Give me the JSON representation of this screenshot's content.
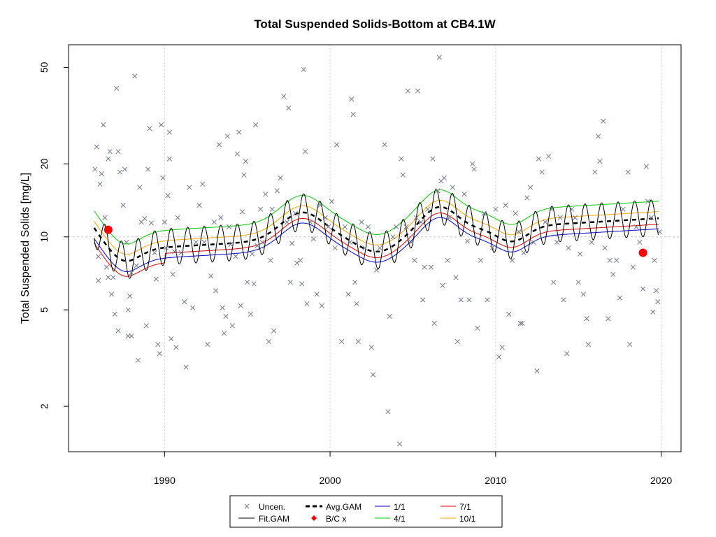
{
  "chart_data": {
    "type": "scatter",
    "title": "Total Suspended Solids-Bottom at CB4.1W",
    "xlabel": "",
    "ylabel": "Total Suspended Solids [mg/L]",
    "y_scale": "log",
    "xlim": [
      1984.2,
      2021.2
    ],
    "ylim": [
      1.3,
      62
    ],
    "x_ticks": [
      1990,
      2000,
      2010,
      2020
    ],
    "y_ticks": [
      2,
      5,
      10,
      20,
      50
    ],
    "reference_line_y": 10,
    "grid": "vertical dotted at x ticks",
    "legend_position": "bottom",
    "colors": {
      "uncensored": "#6e7a8a",
      "fit_gam": "#000000",
      "avg_gam": "#000000",
      "bc": "#ff0000",
      "ratio_1_1": "#0000cd",
      "ratio_4_1": "#00cc00",
      "ratio_7_1": "#e00000",
      "ratio_10_1": "#ffa500"
    },
    "uncensored_points": [
      [
        1985.8,
        19.0
      ],
      [
        1985.9,
        23.5
      ],
      [
        1986.0,
        6.6
      ],
      [
        1986.0,
        8.3
      ],
      [
        1986.1,
        16.5
      ],
      [
        1986.2,
        18.2
      ],
      [
        1986.3,
        29.0
      ],
      [
        1986.4,
        12.0
      ],
      [
        1986.5,
        7.5
      ],
      [
        1986.6,
        6.8
      ],
      [
        1986.6,
        21.0
      ],
      [
        1986.7,
        22.5
      ],
      [
        1986.8,
        5.8
      ],
      [
        1986.9,
        6.8
      ],
      [
        1987.0,
        4.8
      ],
      [
        1987.1,
        41.0
      ],
      [
        1987.2,
        22.5
      ],
      [
        1987.2,
        4.1
      ],
      [
        1987.3,
        18.5
      ],
      [
        1987.5,
        13.5
      ],
      [
        1987.6,
        19.0
      ],
      [
        1987.7,
        9.5
      ],
      [
        1987.8,
        3.9
      ],
      [
        1987.8,
        5.0
      ],
      [
        1987.9,
        5.7
      ],
      [
        1988.0,
        3.9
      ],
      [
        1988.0,
        7.1
      ],
      [
        1988.2,
        46.0
      ],
      [
        1988.3,
        7.6
      ],
      [
        1988.4,
        3.1
      ],
      [
        1988.5,
        16.0
      ],
      [
        1988.6,
        11.5
      ],
      [
        1988.8,
        11.9
      ],
      [
        1988.9,
        4.3
      ],
      [
        1989.0,
        19.0
      ],
      [
        1989.1,
        28.0
      ],
      [
        1989.2,
        11.4
      ],
      [
        1989.4,
        8.6
      ],
      [
        1989.5,
        6.7
      ],
      [
        1989.6,
        3.6
      ],
      [
        1989.7,
        3.3
      ],
      [
        1989.8,
        29.0
      ],
      [
        1989.9,
        17.5
      ],
      [
        1990.0,
        11.5
      ],
      [
        1990.1,
        9.0
      ],
      [
        1990.2,
        14.8
      ],
      [
        1990.3,
        21.0
      ],
      [
        1990.3,
        27.0
      ],
      [
        1990.4,
        3.8
      ],
      [
        1990.5,
        7.0
      ],
      [
        1990.6,
        8.7
      ],
      [
        1990.7,
        3.5
      ],
      [
        1990.8,
        12.0
      ],
      [
        1991.0,
        8.6
      ],
      [
        1991.2,
        5.4
      ],
      [
        1991.3,
        2.9
      ],
      [
        1991.5,
        16.0
      ],
      [
        1991.7,
        5.1
      ],
      [
        1991.9,
        9.5
      ],
      [
        1992.1,
        13.5
      ],
      [
        1992.3,
        16.5
      ],
      [
        1992.4,
        9.5
      ],
      [
        1992.6,
        3.6
      ],
      [
        1992.8,
        6.9
      ],
      [
        1993.0,
        11.5
      ],
      [
        1993.1,
        6.0
      ],
      [
        1993.3,
        24.0
      ],
      [
        1993.4,
        12.0
      ],
      [
        1993.5,
        5.1
      ],
      [
        1993.6,
        4.0
      ],
      [
        1993.7,
        4.7
      ],
      [
        1993.8,
        26.0
      ],
      [
        1993.9,
        11.0
      ],
      [
        1994.0,
        9.3
      ],
      [
        1994.1,
        4.3
      ],
      [
        1994.3,
        8.3
      ],
      [
        1994.4,
        22.0
      ],
      [
        1994.5,
        27.0
      ],
      [
        1994.6,
        5.2
      ],
      [
        1994.7,
        12.7
      ],
      [
        1994.8,
        18.0
      ],
      [
        1994.9,
        20.5
      ],
      [
        1995.0,
        6.5
      ],
      [
        1995.2,
        4.8
      ],
      [
        1995.3,
        8.5
      ],
      [
        1995.4,
        6.4
      ],
      [
        1995.5,
        29.0
      ],
      [
        1995.6,
        9.2
      ],
      [
        1995.8,
        13.0
      ],
      [
        1995.9,
        9.5
      ],
      [
        1996.1,
        15.0
      ],
      [
        1996.3,
        3.7
      ],
      [
        1996.4,
        8.0
      ],
      [
        1996.5,
        13.0
      ],
      [
        1996.6,
        4.1
      ],
      [
        1996.8,
        15.5
      ],
      [
        1997.0,
        17.5
      ],
      [
        1997.2,
        38.0
      ],
      [
        1997.4,
        11.5
      ],
      [
        1997.5,
        34.0
      ],
      [
        1997.6,
        6.5
      ],
      [
        1997.7,
        9.4
      ],
      [
        1997.9,
        12.5
      ],
      [
        1998.0,
        7.8
      ],
      [
        1998.2,
        8.0
      ],
      [
        1998.3,
        6.4
      ],
      [
        1998.4,
        49.0
      ],
      [
        1998.5,
        22.5
      ],
      [
        1998.6,
        5.3
      ],
      [
        1998.8,
        11.5
      ],
      [
        1999.0,
        9.8
      ],
      [
        1999.2,
        5.8
      ],
      [
        1999.4,
        13.5
      ],
      [
        1999.5,
        5.2
      ],
      [
        1999.7,
        12.0
      ],
      [
        1999.9,
        11.0
      ],
      [
        2000.1,
        14.0
      ],
      [
        2000.3,
        9.0
      ],
      [
        2000.4,
        24.0
      ],
      [
        2000.7,
        3.7
      ],
      [
        2000.9,
        11.0
      ],
      [
        2001.1,
        5.8
      ],
      [
        2001.2,
        9.5
      ],
      [
        2001.3,
        37.0
      ],
      [
        2001.4,
        32.0
      ],
      [
        2001.5,
        6.5
      ],
      [
        2001.6,
        5.3
      ],
      [
        2001.7,
        3.7
      ],
      [
        2001.9,
        11.5
      ],
      [
        2002.1,
        9.0
      ],
      [
        2002.3,
        11.0
      ],
      [
        2002.5,
        3.5
      ],
      [
        2002.6,
        2.7
      ],
      [
        2002.8,
        7.3
      ],
      [
        2003.0,
        9.0
      ],
      [
        2003.3,
        24.0
      ],
      [
        2003.5,
        1.9
      ],
      [
        2003.6,
        4.7
      ],
      [
        2003.8,
        10.0
      ],
      [
        2004.0,
        11.0
      ],
      [
        2004.2,
        1.4
      ],
      [
        2004.3,
        21.0
      ],
      [
        2004.4,
        18.0
      ],
      [
        2004.6,
        11.0
      ],
      [
        2004.7,
        40.0
      ],
      [
        2004.9,
        9.5
      ],
      [
        2005.1,
        8.0
      ],
      [
        2005.2,
        12.0
      ],
      [
        2005.3,
        40.0
      ],
      [
        2005.5,
        11.5
      ],
      [
        2005.6,
        5.5
      ],
      [
        2005.7,
        7.5
      ],
      [
        2005.9,
        13.0
      ],
      [
        2006.1,
        7.5
      ],
      [
        2006.2,
        21.0
      ],
      [
        2006.3,
        4.4
      ],
      [
        2006.5,
        15.5
      ],
      [
        2006.6,
        55.0
      ],
      [
        2006.7,
        17.0
      ],
      [
        2006.8,
        6.3
      ],
      [
        2006.9,
        17.5
      ],
      [
        2007.1,
        8.0
      ],
      [
        2007.2,
        12.0
      ],
      [
        2007.4,
        16.0
      ],
      [
        2007.6,
        6.8
      ],
      [
        2007.7,
        3.7
      ],
      [
        2007.9,
        5.5
      ],
      [
        2008.1,
        15.0
      ],
      [
        2008.3,
        9.6
      ],
      [
        2008.4,
        5.5
      ],
      [
        2008.6,
        20.0
      ],
      [
        2008.7,
        19.0
      ],
      [
        2008.9,
        4.2
      ],
      [
        2009.1,
        8.0
      ],
      [
        2009.3,
        12.5
      ],
      [
        2009.5,
        5.5
      ],
      [
        2009.8,
        9.0
      ],
      [
        2010.0,
        13.0
      ],
      [
        2010.2,
        3.2
      ],
      [
        2010.4,
        3.5
      ],
      [
        2010.6,
        13.5
      ],
      [
        2010.8,
        4.8
      ],
      [
        2011.0,
        8.0
      ],
      [
        2011.2,
        12.5
      ],
      [
        2011.4,
        10.5
      ],
      [
        2011.5,
        4.4
      ],
      [
        2011.6,
        4.4
      ],
      [
        2011.7,
        8.6
      ],
      [
        2011.9,
        14.5
      ],
      [
        2012.1,
        16.0
      ],
      [
        2012.3,
        9.5
      ],
      [
        2012.5,
        2.8
      ],
      [
        2012.6,
        21.0
      ],
      [
        2012.8,
        18.5
      ],
      [
        2013.0,
        11.5
      ],
      [
        2013.2,
        21.5
      ],
      [
        2013.4,
        13.0
      ],
      [
        2013.5,
        6.5
      ],
      [
        2013.7,
        9.5
      ],
      [
        2013.9,
        12.0
      ],
      [
        2014.1,
        5.5
      ],
      [
        2014.3,
        3.3
      ],
      [
        2014.4,
        9.0
      ],
      [
        2014.6,
        13.0
      ],
      [
        2014.8,
        12.0
      ],
      [
        2015.0,
        6.5
      ],
      [
        2015.1,
        8.5
      ],
      [
        2015.3,
        5.8
      ],
      [
        2015.5,
        4.6
      ],
      [
        2015.6,
        3.6
      ],
      [
        2015.8,
        9.5
      ],
      [
        2016.0,
        18.5
      ],
      [
        2016.2,
        26.0
      ],
      [
        2016.3,
        20.5
      ],
      [
        2016.5,
        30.0
      ],
      [
        2016.6,
        9.0
      ],
      [
        2016.8,
        4.6
      ],
      [
        2016.9,
        8.0
      ],
      [
        2017.1,
        7.0
      ],
      [
        2017.3,
        8.0
      ],
      [
        2017.5,
        5.6
      ],
      [
        2017.7,
        13.0
      ],
      [
        2018.0,
        18.5
      ],
      [
        2018.1,
        3.6
      ],
      [
        2018.3,
        7.5
      ],
      [
        2018.5,
        11.0
      ],
      [
        2018.7,
        9.5
      ],
      [
        2018.9,
        6.1
      ],
      [
        2019.1,
        19.5
      ],
      [
        2019.2,
        14.0
      ],
      [
        2019.4,
        12.0
      ],
      [
        2019.6,
        8.0
      ],
      [
        2019.7,
        6.0
      ],
      [
        2019.9,
        10.5
      ],
      [
        2019.5,
        4.9
      ],
      [
        2019.8,
        5.4
      ]
    ],
    "bc_points": [
      [
        1986.6,
        10.7
      ],
      [
        2018.9,
        8.6
      ]
    ],
    "legend": [
      "Uncen.",
      "Avg.GAM",
      "1/1",
      "7/1",
      "Fit.GAM",
      "B/C x",
      "4/1",
      "10/1"
    ]
  }
}
